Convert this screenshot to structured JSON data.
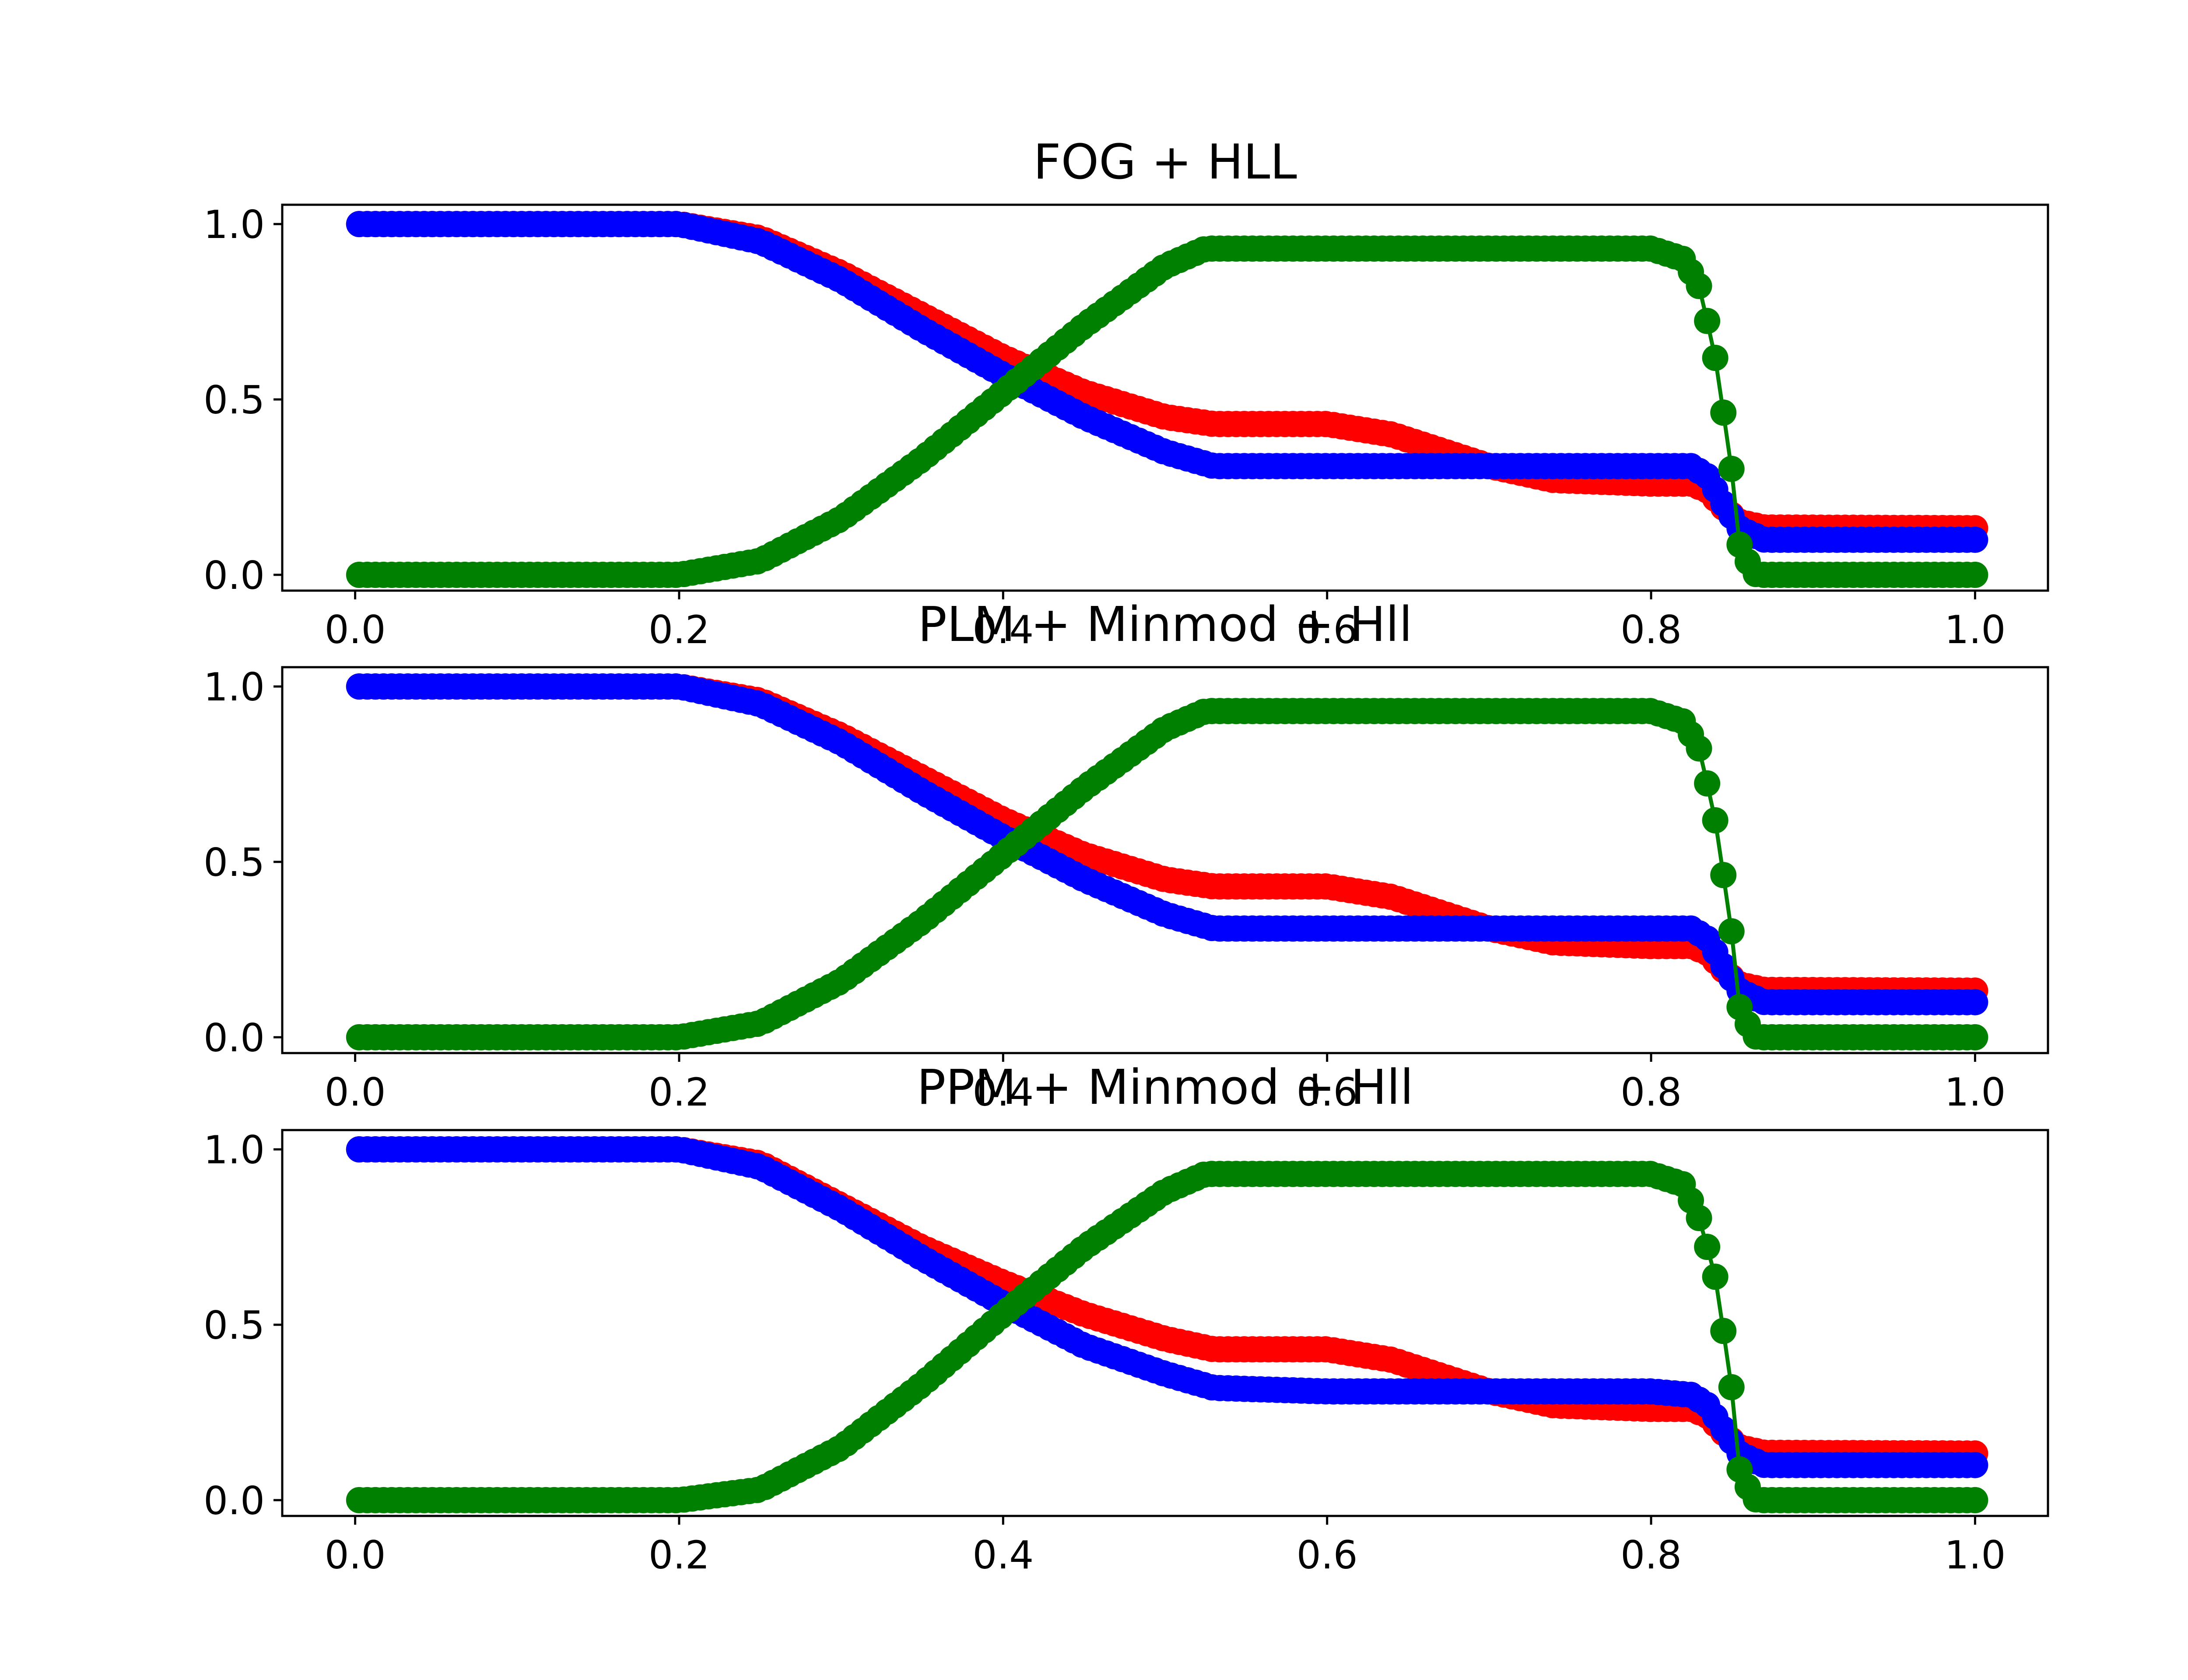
{
  "colors": {
    "density": "#ff0000",
    "pressure": "#0000ff",
    "velocity": "#008000",
    "frame": "#000000",
    "background": "#ffffff"
  },
  "x_ticks": [
    "0.0",
    "0.2",
    "0.4",
    "0.6",
    "0.8",
    "1.0"
  ],
  "y_ticks": [
    "0.0",
    "0.5",
    "1.0"
  ],
  "chart_data": [
    {
      "type": "line",
      "title": "FOG + HLL",
      "xlabel": "",
      "ylabel": "",
      "xlim": [
        -0.045,
        1.045
      ],
      "ylim": [
        -0.045,
        1.055
      ],
      "grid": false,
      "marker": "o",
      "n_points": 200,
      "x": [
        0.0025,
        1.0
      ],
      "series": [
        {
          "color": "#ff0000",
          "knots": [
            [
              0.0,
              1.0
            ],
            [
              0.2,
              1.0
            ],
            [
              0.25,
              0.96
            ],
            [
              0.3,
              0.86
            ],
            [
              0.35,
              0.74
            ],
            [
              0.4,
              0.62
            ],
            [
              0.45,
              0.52
            ],
            [
              0.5,
              0.45
            ],
            [
              0.53,
              0.43
            ],
            [
              0.6,
              0.43
            ],
            [
              0.64,
              0.4
            ],
            [
              0.7,
              0.31
            ],
            [
              0.74,
              0.27
            ],
            [
              0.8,
              0.26
            ],
            [
              0.825,
              0.26
            ],
            [
              0.835,
              0.24
            ],
            [
              0.845,
              0.19
            ],
            [
              0.855,
              0.15
            ],
            [
              0.87,
              0.135
            ],
            [
              1.0,
              0.133
            ]
          ]
        },
        {
          "color": "#0000ff",
          "knots": [
            [
              0.0,
              1.0
            ],
            [
              0.2,
              1.0
            ],
            [
              0.25,
              0.95
            ],
            [
              0.3,
              0.84
            ],
            [
              0.35,
              0.7
            ],
            [
              0.4,
              0.57
            ],
            [
              0.45,
              0.45
            ],
            [
              0.5,
              0.35
            ],
            [
              0.53,
              0.31
            ],
            [
              0.6,
              0.31
            ],
            [
              0.825,
              0.31
            ],
            [
              0.835,
              0.28
            ],
            [
              0.845,
              0.2
            ],
            [
              0.855,
              0.13
            ],
            [
              0.87,
              0.1
            ],
            [
              1.0,
              0.1
            ]
          ]
        },
        {
          "color": "#008000",
          "knots": [
            [
              0.0,
              0.0
            ],
            [
              0.2,
              0.0
            ],
            [
              0.25,
              0.04
            ],
            [
              0.3,
              0.16
            ],
            [
              0.35,
              0.33
            ],
            [
              0.4,
              0.52
            ],
            [
              0.45,
              0.71
            ],
            [
              0.5,
              0.88
            ],
            [
              0.525,
              0.93
            ],
            [
              0.8,
              0.93
            ],
            [
              0.82,
              0.9
            ],
            [
              0.83,
              0.82
            ],
            [
              0.84,
              0.61
            ],
            [
              0.85,
              0.29
            ],
            [
              0.855,
              0.07
            ],
            [
              0.865,
              0.0
            ],
            [
              1.0,
              0.0
            ]
          ]
        }
      ]
    },
    {
      "type": "line",
      "title": "PLM + Minmod + Hll",
      "xlabel": "",
      "ylabel": "",
      "xlim": [
        -0.045,
        1.045
      ],
      "ylim": [
        -0.045,
        1.055
      ],
      "grid": false,
      "marker": "o",
      "n_points": 200,
      "x": [
        0.0025,
        1.0
      ],
      "series": [
        {
          "color": "#ff0000",
          "knots": [
            [
              0.0,
              1.0
            ],
            [
              0.2,
              1.0
            ],
            [
              0.25,
              0.96
            ],
            [
              0.3,
              0.86
            ],
            [
              0.35,
              0.74
            ],
            [
              0.4,
              0.62
            ],
            [
              0.45,
              0.52
            ],
            [
              0.5,
              0.45
            ],
            [
              0.53,
              0.43
            ],
            [
              0.6,
              0.43
            ],
            [
              0.64,
              0.4
            ],
            [
              0.7,
              0.31
            ],
            [
              0.74,
              0.27
            ],
            [
              0.8,
              0.26
            ],
            [
              0.825,
              0.26
            ],
            [
              0.835,
              0.24
            ],
            [
              0.845,
              0.19
            ],
            [
              0.855,
              0.15
            ],
            [
              0.87,
              0.135
            ],
            [
              1.0,
              0.133
            ]
          ]
        },
        {
          "color": "#0000ff",
          "knots": [
            [
              0.0,
              1.0
            ],
            [
              0.2,
              1.0
            ],
            [
              0.25,
              0.95
            ],
            [
              0.3,
              0.84
            ],
            [
              0.35,
              0.7
            ],
            [
              0.4,
              0.57
            ],
            [
              0.45,
              0.45
            ],
            [
              0.5,
              0.35
            ],
            [
              0.53,
              0.31
            ],
            [
              0.6,
              0.31
            ],
            [
              0.825,
              0.31
            ],
            [
              0.835,
              0.28
            ],
            [
              0.845,
              0.2
            ],
            [
              0.855,
              0.13
            ],
            [
              0.87,
              0.1
            ],
            [
              1.0,
              0.1
            ]
          ]
        },
        {
          "color": "#008000",
          "knots": [
            [
              0.0,
              0.0
            ],
            [
              0.2,
              0.0
            ],
            [
              0.25,
              0.04
            ],
            [
              0.3,
              0.16
            ],
            [
              0.35,
              0.33
            ],
            [
              0.4,
              0.52
            ],
            [
              0.45,
              0.71
            ],
            [
              0.5,
              0.88
            ],
            [
              0.525,
              0.93
            ],
            [
              0.8,
              0.93
            ],
            [
              0.82,
              0.9
            ],
            [
              0.83,
              0.82
            ],
            [
              0.84,
              0.61
            ],
            [
              0.85,
              0.29
            ],
            [
              0.855,
              0.07
            ],
            [
              0.865,
              0.0
            ],
            [
              1.0,
              0.0
            ]
          ]
        }
      ]
    },
    {
      "type": "line",
      "title": "PPM + Minmod + Hll",
      "xlabel": "",
      "ylabel": "",
      "xlim": [
        -0.045,
        1.045
      ],
      "ylim": [
        -0.045,
        1.055
      ],
      "grid": false,
      "marker": "o",
      "n_points": 200,
      "x": [
        0.0025,
        1.0
      ],
      "series": [
        {
          "color": "#ff0000",
          "knots": [
            [
              0.0,
              1.0
            ],
            [
              0.2,
              1.0
            ],
            [
              0.25,
              0.96
            ],
            [
              0.3,
              0.84
            ],
            [
              0.35,
              0.72
            ],
            [
              0.4,
              0.62
            ],
            [
              0.45,
              0.53
            ],
            [
              0.5,
              0.46
            ],
            [
              0.53,
              0.43
            ],
            [
              0.6,
              0.43
            ],
            [
              0.64,
              0.4
            ],
            [
              0.7,
              0.31
            ],
            [
              0.74,
              0.27
            ],
            [
              0.8,
              0.26
            ],
            [
              0.825,
              0.26
            ],
            [
              0.835,
              0.24
            ],
            [
              0.845,
              0.19
            ],
            [
              0.855,
              0.15
            ],
            [
              0.87,
              0.135
            ],
            [
              1.0,
              0.133
            ]
          ]
        },
        {
          "color": "#0000ff",
          "knots": [
            [
              0.0,
              1.0
            ],
            [
              0.2,
              1.0
            ],
            [
              0.25,
              0.95
            ],
            [
              0.3,
              0.83
            ],
            [
              0.35,
              0.69
            ],
            [
              0.4,
              0.56
            ],
            [
              0.45,
              0.44
            ],
            [
              0.5,
              0.36
            ],
            [
              0.53,
              0.32
            ],
            [
              0.6,
              0.31
            ],
            [
              0.8,
              0.31
            ],
            [
              0.825,
              0.3
            ],
            [
              0.835,
              0.27
            ],
            [
              0.845,
              0.2
            ],
            [
              0.855,
              0.13
            ],
            [
              0.87,
              0.1
            ],
            [
              1.0,
              0.1
            ]
          ]
        },
        {
          "color": "#008000",
          "knots": [
            [
              0.0,
              0.0
            ],
            [
              0.2,
              0.0
            ],
            [
              0.25,
              0.03
            ],
            [
              0.3,
              0.15
            ],
            [
              0.35,
              0.33
            ],
            [
              0.4,
              0.53
            ],
            [
              0.45,
              0.72
            ],
            [
              0.5,
              0.88
            ],
            [
              0.525,
              0.93
            ],
            [
              0.8,
              0.93
            ],
            [
              0.82,
              0.9
            ],
            [
              0.83,
              0.8
            ],
            [
              0.84,
              0.63
            ],
            [
              0.85,
              0.31
            ],
            [
              0.855,
              0.07
            ],
            [
              0.865,
              0.0
            ],
            [
              1.0,
              0.0
            ]
          ]
        }
      ]
    }
  ]
}
